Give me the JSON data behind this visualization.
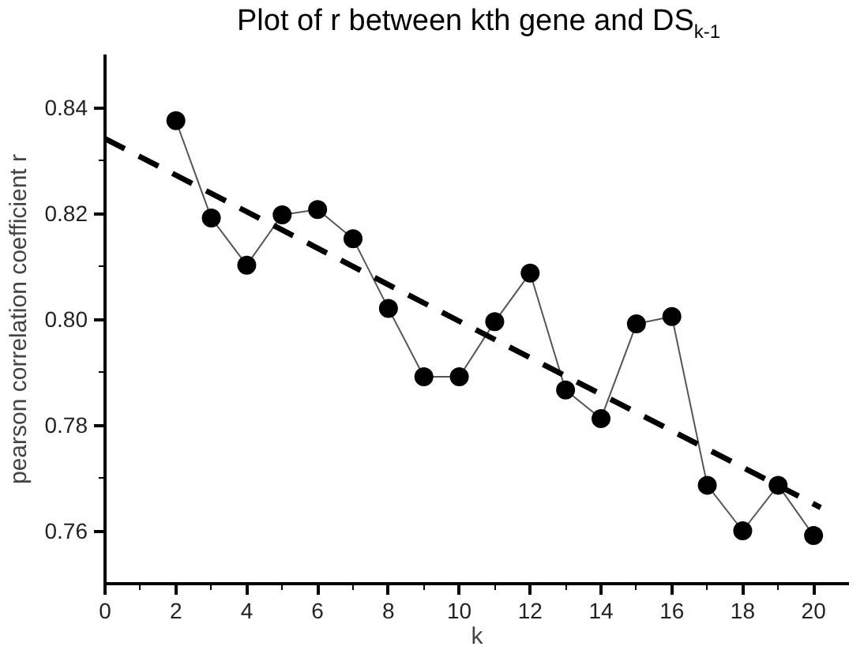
{
  "chart_data": {
    "type": "line",
    "title": "Plot of r between kth gene and DS$_{k-1}$",
    "xlabel": "k",
    "ylabel": "pearson correlation coefficient r",
    "xlim": [
      0,
      21
    ],
    "ylim": [
      0.75,
      0.85
    ],
    "xticks": [
      0,
      2,
      4,
      6,
      8,
      10,
      12,
      14,
      16,
      18,
      20
    ],
    "yticks": [
      0.76,
      0.78,
      {
        "value": 0.8,
        "label": "0.80"
      },
      0.82,
      0.84
    ],
    "grid": false,
    "series": [
      {
        "color": "#000000",
        "marker": "circle",
        "line_style": "solid",
        "x": [
          2,
          3,
          4,
          5,
          6,
          7,
          8,
          9,
          10,
          11,
          12,
          13,
          14,
          15,
          16,
          17,
          18,
          19,
          20
        ],
        "values": [
          0.8375,
          0.8191,
          0.8102,
          0.8197,
          0.8207,
          0.8152,
          0.802,
          0.7891,
          0.7891,
          0.7995,
          0.8087,
          0.7866,
          0.7812,
          0.7991,
          0.8005,
          0.7686,
          0.76,
          0.7686,
          0.7591
        ]
      },
      {
        "color": "#000000",
        "marker": "none",
        "line_style": "dashed",
        "x": [
          0,
          20.2
        ],
        "values": [
          0.8341,
          0.7644
        ]
      }
    ]
  }
}
